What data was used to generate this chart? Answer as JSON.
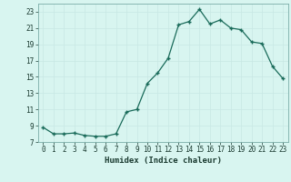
{
  "x": [
    0,
    1,
    2,
    3,
    4,
    5,
    6,
    7,
    8,
    9,
    10,
    11,
    12,
    13,
    14,
    15,
    16,
    17,
    18,
    19,
    20,
    21,
    22,
    23
  ],
  "y": [
    8.8,
    8.0,
    8.0,
    8.1,
    7.8,
    7.7,
    7.7,
    8.0,
    10.7,
    11.0,
    14.2,
    15.5,
    17.3,
    21.4,
    21.8,
    23.3,
    21.5,
    22.0,
    21.0,
    20.8,
    19.3,
    19.1,
    16.3,
    14.8
  ],
  "line_color": "#1a6b5a",
  "marker": "+",
  "bg_color": "#d8f5f0",
  "grid_color": "#c8e8e4",
  "xlabel": "Humidex (Indice chaleur)",
  "ylim": [
    7,
    24
  ],
  "xlim": [
    -0.5,
    23.5
  ],
  "yticks": [
    7,
    9,
    11,
    13,
    15,
    17,
    19,
    21,
    23
  ],
  "xticks": [
    0,
    1,
    2,
    3,
    4,
    5,
    6,
    7,
    8,
    9,
    10,
    11,
    12,
    13,
    14,
    15,
    16,
    17,
    18,
    19,
    20,
    21,
    22,
    23
  ],
  "tick_fontsize": 5.5,
  "label_fontsize": 6.5
}
